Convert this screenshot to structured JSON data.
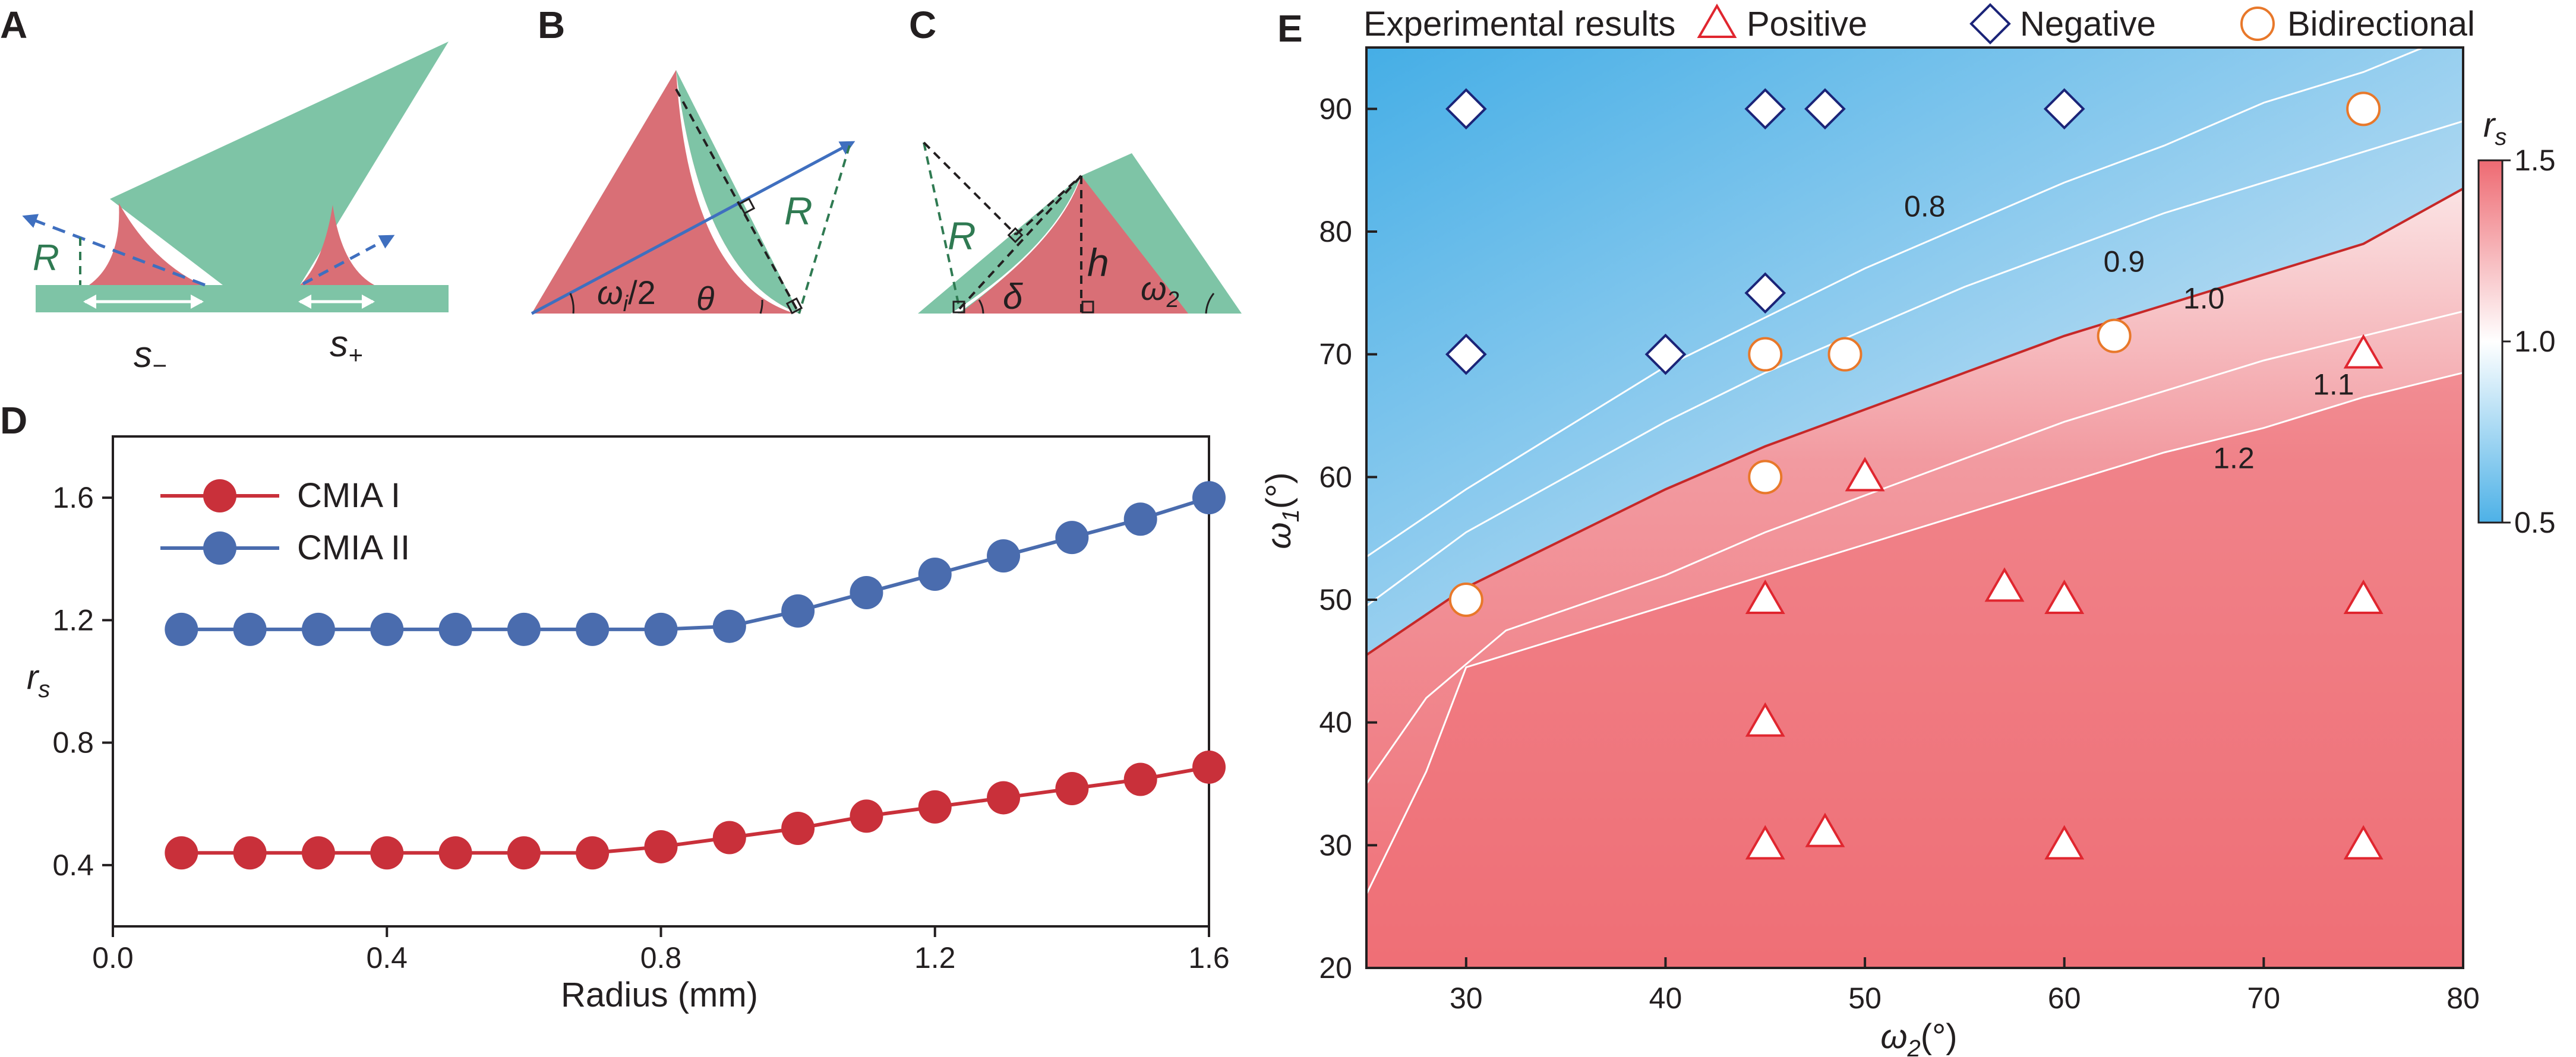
{
  "panels": {
    "A": {
      "label": "A",
      "R": "R",
      "s_minus": "s",
      "s_minus_sub": "−",
      "s_plus": "s",
      "s_plus_sub": "+"
    },
    "B": {
      "label": "B",
      "omega": "ω",
      "omega_sub": "i",
      "omega_tail": "/2",
      "theta": "θ",
      "R": "R"
    },
    "C": {
      "label": "C",
      "R": "R",
      "delta": "δ",
      "h": "h",
      "omega": "ω",
      "omega_sub": "2"
    },
    "D": {
      "label": "D"
    },
    "E": {
      "label": "E"
    }
  },
  "colors": {
    "teal": "#7ec4a6",
    "pink": "#d96f76",
    "red": "#c9303a",
    "blue": "#4a6cae",
    "navy": "#1b2478",
    "orange": "#e8782a",
    "arrow": "#3f6fbf",
    "dashgreen": "#2f7a52",
    "contour": "#ffffff",
    "contour_main": "#c62828"
  },
  "chart_data": [
    {
      "type": "line",
      "panel": "D",
      "x": [
        0.1,
        0.2,
        0.3,
        0.4,
        0.5,
        0.6,
        0.7,
        0.8,
        0.9,
        1.0,
        1.1,
        1.2,
        1.3,
        1.4,
        1.5,
        1.6
      ],
      "series": [
        {
          "name": "CMIA I",
          "color": "#c9303a",
          "values": [
            0.44,
            0.44,
            0.44,
            0.44,
            0.44,
            0.44,
            0.44,
            0.46,
            0.49,
            0.52,
            0.56,
            0.59,
            0.62,
            0.65,
            0.68,
            0.72
          ]
        },
        {
          "name": "CMIA II",
          "color": "#4a6cae",
          "values": [
            1.17,
            1.17,
            1.17,
            1.17,
            1.17,
            1.17,
            1.17,
            1.17,
            1.18,
            1.23,
            1.29,
            1.35,
            1.41,
            1.47,
            1.53,
            1.6
          ]
        }
      ],
      "xlabel": "Radius (mm)",
      "ylabel": "r",
      "ylabel_sub": "s",
      "xlim": [
        0.0,
        1.6
      ],
      "ylim": [
        0.2,
        1.8
      ],
      "xticks": [
        "0.0",
        "0.4",
        "0.8",
        "1.2",
        "1.6"
      ],
      "yticks": [
        "0.4",
        "0.8",
        "1.2",
        "1.6"
      ],
      "legend": "top-left",
      "grid": false
    },
    {
      "type": "heatmap",
      "panel": "E",
      "xlabel": "ω",
      "xlabel_sub": "2",
      "xlabel_unit": "(°)",
      "ylabel": "ω",
      "ylabel_sub": "1",
      "ylabel_unit": "(°)",
      "xlim": [
        25,
        80
      ],
      "ylim": [
        20,
        95
      ],
      "xticks": [
        "30",
        "40",
        "50",
        "60",
        "70",
        "80"
      ],
      "yticks": [
        "20",
        "30",
        "40",
        "50",
        "60",
        "70",
        "80",
        "90"
      ],
      "colorbar": {
        "label": "r",
        "label_sub": "s",
        "min": 0.5,
        "max": 1.5,
        "ticks": [
          "0.5",
          "1.0",
          "1.5"
        ]
      },
      "contours": [
        {
          "level": "0.8",
          "points": [
            [
              25,
              53.5
            ],
            [
              30,
              59
            ],
            [
              35,
              64
            ],
            [
              40,
              69
            ],
            [
              45,
              73
            ],
            [
              50,
              77
            ],
            [
              55,
              80.5
            ],
            [
              60,
              84
            ],
            [
              65,
              87
            ],
            [
              70,
              90.5
            ],
            [
              75,
              93
            ],
            [
              78,
              95
            ]
          ]
        },
        {
          "level": "0.9",
          "points": [
            [
              25,
              49.5
            ],
            [
              30,
              55.5
            ],
            [
              35,
              60
            ],
            [
              40,
              64.5
            ],
            [
              45,
              68.5
            ],
            [
              50,
              72
            ],
            [
              55,
              75.5
            ],
            [
              60,
              78.5
            ],
            [
              65,
              81.5
            ],
            [
              70,
              84
            ],
            [
              75,
              86.5
            ],
            [
              80,
              89
            ]
          ]
        },
        {
          "level": "1.0",
          "points": [
            [
              25,
              45.5
            ],
            [
              30,
              51
            ],
            [
              35,
              55
            ],
            [
              40,
              59
            ],
            [
              45,
              62.5
            ],
            [
              50,
              65.5
            ],
            [
              55,
              68.5
            ],
            [
              60,
              71.5
            ],
            [
              65,
              74
            ],
            [
              70,
              76.5
            ],
            [
              75,
              79
            ],
            [
              80,
              83.5
            ]
          ]
        },
        {
          "level": "1.1",
          "points": [
            [
              25,
              35
            ],
            [
              28,
              42
            ],
            [
              32,
              47.5
            ],
            [
              40,
              52
            ],
            [
              45,
              55.5
            ],
            [
              50,
              58.5
            ],
            [
              55,
              61.5
            ],
            [
              60,
              64.5
            ],
            [
              65,
              67
            ],
            [
              70,
              69.5
            ],
            [
              75,
              71.5
            ],
            [
              80,
              73.5
            ]
          ]
        },
        {
          "level": "1.2",
          "points": [
            [
              25,
              26
            ],
            [
              28,
              36
            ],
            [
              30,
              44.5
            ],
            [
              35,
              47
            ],
            [
              40,
              49.5
            ],
            [
              45,
              52
            ],
            [
              50,
              54.5
            ],
            [
              55,
              57
            ],
            [
              60,
              59.5
            ],
            [
              65,
              62
            ],
            [
              70,
              64
            ],
            [
              75,
              66.5
            ],
            [
              80,
              68.5
            ]
          ]
        }
      ],
      "contour_labels": [
        {
          "text": "0.8",
          "x": 53,
          "y": 82
        },
        {
          "text": "0.9",
          "x": 63,
          "y": 77.5
        },
        {
          "text": "1.0",
          "x": 67,
          "y": 74.5
        },
        {
          "text": "1.1",
          "x": 73.5,
          "y": 67.5
        },
        {
          "text": "1.2",
          "x": 68.5,
          "y": 61.5
        }
      ],
      "legend": {
        "title": "Experimental results",
        "entries": [
          {
            "name": "Positive",
            "marker": "triangle"
          },
          {
            "name": "Negative",
            "marker": "diamond"
          },
          {
            "name": "Bidirectional",
            "marker": "circle"
          }
        ],
        "placement": "top"
      },
      "series": [
        {
          "name": "Positive",
          "marker": "triangle",
          "points": [
            [
              45,
              50
            ],
            [
              45,
              40
            ],
            [
              45,
              30
            ],
            [
              48,
              31
            ],
            [
              50,
              60
            ],
            [
              57,
              51
            ],
            [
              60,
              50
            ],
            [
              60,
              30
            ],
            [
              75,
              70
            ],
            [
              75,
              50
            ],
            [
              75,
              30
            ]
          ]
        },
        {
          "name": "Negative",
          "marker": "diamond",
          "points": [
            [
              30,
              90
            ],
            [
              45,
              90
            ],
            [
              48,
              90
            ],
            [
              60,
              90
            ],
            [
              30,
              70
            ],
            [
              40,
              70
            ],
            [
              45,
              75
            ]
          ]
        },
        {
          "name": "Bidirectional",
          "marker": "circle",
          "points": [
            [
              30,
              50
            ],
            [
              45,
              70
            ],
            [
              45,
              60
            ],
            [
              49,
              70
            ],
            [
              62.5,
              71.5
            ],
            [
              75,
              90
            ]
          ]
        }
      ],
      "grid": false
    }
  ]
}
